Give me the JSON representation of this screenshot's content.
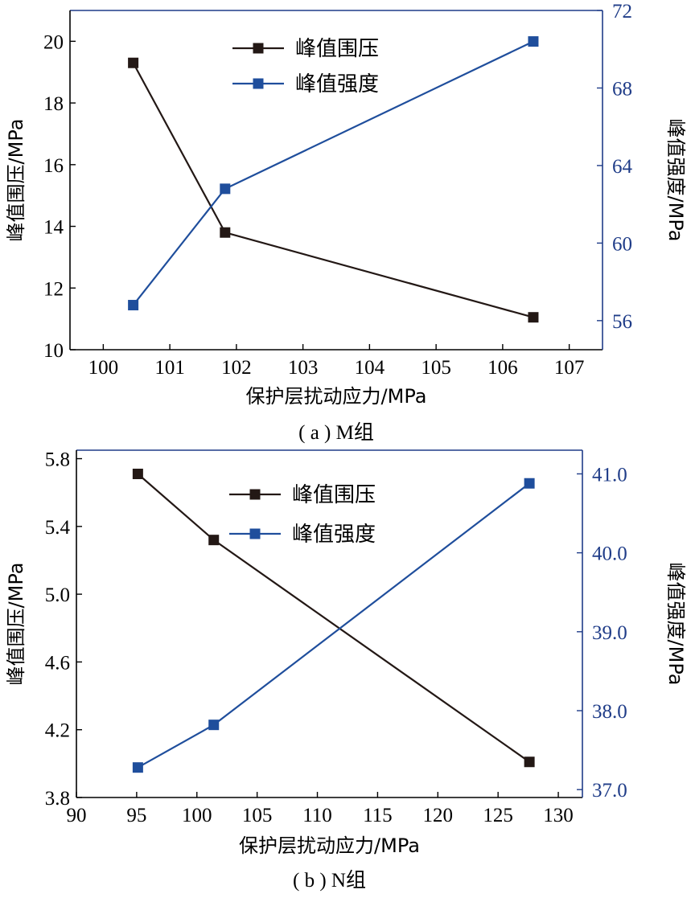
{
  "chart_data": [
    {
      "type": "line",
      "caption": "( a ) M组",
      "xlabel": "保护层扰动应力/MPa",
      "ylabel_left": "峰值围压/MPa",
      "ylabel_right": "峰值强度/MPa",
      "xlim": [
        99.5,
        107.5
      ],
      "xticks": [
        100,
        101,
        102,
        103,
        104,
        105,
        106,
        107
      ],
      "ylim_left": [
        10,
        21
      ],
      "yticks_left": [
        10,
        12,
        14,
        16,
        18,
        20
      ],
      "ylim_right": [
        54.5,
        72
      ],
      "yticks_right": [
        56,
        60,
        64,
        68,
        72
      ],
      "axis_colors": {
        "left": "#000000",
        "right": "#1f3c88"
      },
      "series": [
        {
          "name": "峰值围压",
          "axis": "left",
          "color": "#231815",
          "x": [
            100.45,
            101.83,
            106.46
          ],
          "y": [
            19.3,
            13.8,
            11.05
          ]
        },
        {
          "name": "峰值强度",
          "axis": "right",
          "color": "#1f4e9c",
          "x": [
            100.45,
            101.83,
            106.46
          ],
          "y": [
            56.8,
            62.8,
            70.4
          ]
        }
      ],
      "legend": "top-center"
    },
    {
      "type": "line",
      "caption": "( b ) N组",
      "xlabel": "保护层扰动应力/MPa",
      "ylabel_left": "峰值围压/MPa",
      "ylabel_right": "峰值强度/MPa",
      "xlim": [
        90,
        132
      ],
      "xticks": [
        90,
        95,
        100,
        105,
        110,
        115,
        120,
        125,
        130
      ],
      "ylim_left": [
        3.8,
        5.85
      ],
      "yticks_left": [
        "3.8",
        "4.2",
        "4.6",
        "5.0",
        "5.4",
        "5.8"
      ],
      "ylim_right": [
        36.9,
        41.3
      ],
      "yticks_right": [
        "37.0",
        "38.0",
        "39.0",
        "40.0",
        "41.0"
      ],
      "axis_colors": {
        "left": "#000000",
        "right": "#1f3c88"
      },
      "series": [
        {
          "name": "峰值围压",
          "axis": "left",
          "color": "#231815",
          "x": [
            95.1,
            101.4,
            127.6
          ],
          "y": [
            5.71,
            5.32,
            4.01
          ]
        },
        {
          "name": "峰值强度",
          "axis": "right",
          "color": "#1f4e9c",
          "x": [
            95.1,
            101.4,
            127.6
          ],
          "y": [
            37.28,
            37.82,
            40.88
          ]
        }
      ],
      "legend": "top-center"
    }
  ]
}
